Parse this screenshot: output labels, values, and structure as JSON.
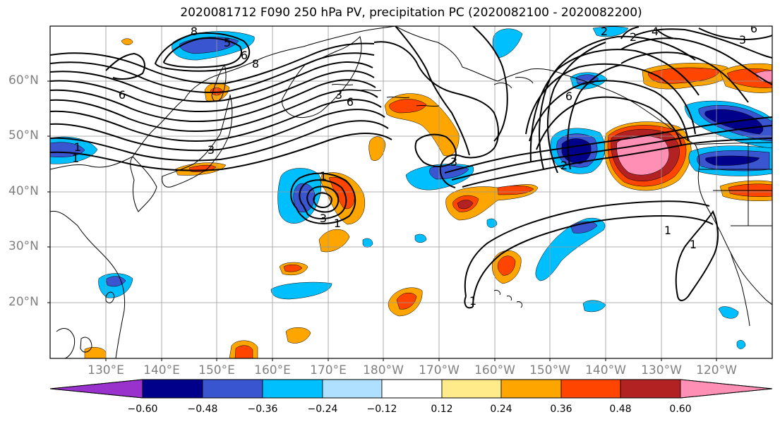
{
  "title": "2020081712 F090 250 hPa PV, precipitation PC (2020082100 - 2020082200)",
  "latitude_labels": [
    "60°N",
    "50°N",
    "40°N",
    "30°N",
    "20°N"
  ],
  "longitude_labels": [
    "130°E",
    "140°E",
    "150°E",
    "160°E",
    "170°E",
    "180°W",
    "170°W",
    "160°W",
    "150°W",
    "140°W",
    "130°W",
    "120°W"
  ],
  "contour_labels": [
    "8",
    "5",
    "6",
    "8",
    "6",
    "3",
    "1",
    "1",
    "3",
    "6",
    "3",
    "1",
    "1",
    "3",
    "1",
    "2",
    "6",
    "2",
    "1",
    "1",
    "4",
    "2",
    "3",
    "6"
  ],
  "colorbar": {
    "ticks": [
      "−0.60",
      "−0.48",
      "−0.36",
      "−0.24",
      "−0.12",
      "0.12",
      "0.24",
      "0.36",
      "0.48",
      "0.60"
    ],
    "colors": [
      "#9932cc",
      "#00008b",
      "#3a55d0",
      "#00bfff",
      "#b0e0ff",
      "#ffffff",
      "#ffeb8a",
      "#ffa500",
      "#ff4500",
      "#b22222",
      "#ff8fb4"
    ]
  }
}
